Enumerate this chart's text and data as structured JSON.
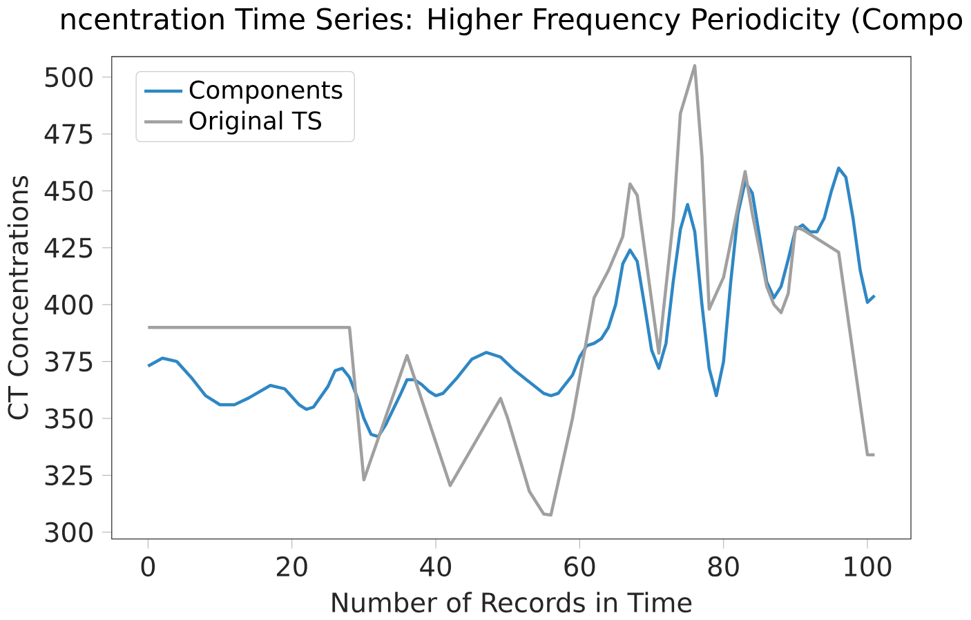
{
  "chart_data": {
    "type": "line",
    "title": "ncentration Time Series: Higher Frequency Periodicity (Compo",
    "xlabel": "Number of Records in Time",
    "ylabel": "CT Concentrations",
    "xlim": [
      -5.05,
      106.05
    ],
    "ylim": [
      297,
      509
    ],
    "xticks": [
      0,
      20,
      40,
      60,
      80,
      100
    ],
    "yticks": [
      300,
      325,
      350,
      375,
      400,
      425,
      450,
      475,
      500
    ],
    "grid": false,
    "legend": "top left",
    "line_style": "solid",
    "series": [
      {
        "name": "Components",
        "color": "#2f87c4",
        "x": [
          0,
          2,
          4,
          6,
          8,
          10,
          12,
          14,
          17,
          19,
          21,
          22,
          23,
          25,
          26,
          27,
          28,
          29,
          30,
          31,
          32,
          33,
          35,
          36,
          37,
          38,
          39,
          40,
          41,
          43,
          45,
          47,
          49,
          51,
          53,
          55,
          56,
          57,
          59,
          60,
          61,
          62,
          63,
          64,
          65,
          66,
          67,
          68,
          69,
          70,
          71,
          72,
          73,
          74,
          75,
          76,
          77,
          78,
          79,
          80,
          81,
          82,
          83,
          84,
          85,
          86,
          87,
          88,
          89,
          90,
          91,
          92,
          93,
          94,
          95,
          96,
          97,
          98,
          99,
          100,
          101
        ],
        "values": [
          373,
          376.5,
          375,
          368,
          360,
          356,
          356,
          359,
          364.5,
          363,
          356,
          354,
          355,
          364,
          371,
          372,
          368,
          360,
          350,
          343,
          342,
          347,
          360,
          367,
          367,
          365,
          362,
          360,
          361,
          368,
          376,
          379,
          377,
          371,
          366,
          361,
          360,
          361,
          369,
          377,
          382,
          383,
          385,
          390,
          400,
          418,
          424,
          419,
          400,
          380,
          372,
          383,
          410,
          433,
          444,
          432,
          400,
          372,
          360,
          375,
          410,
          440,
          454,
          449,
          430,
          410,
          403,
          408,
          420,
          433,
          435,
          432,
          432,
          438,
          450,
          460,
          456,
          438,
          415,
          401,
          404
        ]
      },
      {
        "name": "Original TS",
        "color": "#a0a0a0",
        "x": [
          0,
          28,
          30,
          36,
          42,
          49,
          50,
          53,
          55,
          56,
          59,
          62,
          64,
          66,
          67,
          68,
          71,
          73,
          74,
          76,
          77,
          78,
          80,
          83,
          84,
          86,
          87,
          88,
          89,
          90,
          91,
          96,
          100,
          101
        ],
        "values": [
          390,
          390,
          323,
          377.6,
          320.5,
          358.8,
          350,
          318,
          308,
          307.5,
          350,
          403,
          415,
          430,
          453,
          448,
          378.7,
          437,
          484,
          505,
          465,
          398,
          412,
          458.5,
          440,
          408,
          400,
          396.5,
          405,
          434,
          433,
          423,
          334,
          334
        ]
      }
    ]
  }
}
